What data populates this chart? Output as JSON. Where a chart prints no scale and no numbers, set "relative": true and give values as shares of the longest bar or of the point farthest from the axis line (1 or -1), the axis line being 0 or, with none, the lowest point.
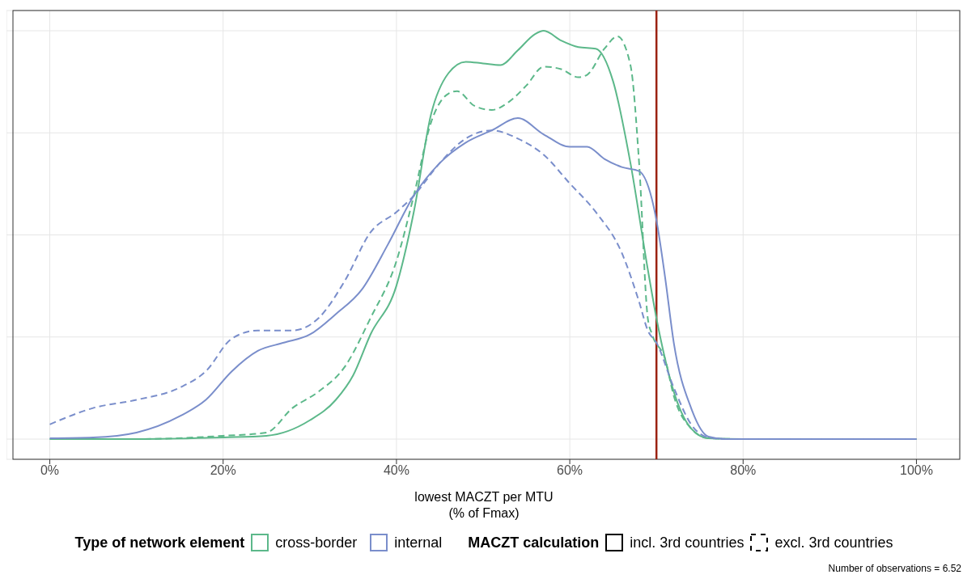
{
  "chart_data": {
    "type": "line",
    "relative": true,
    "xlabel": "lowest MACZT per MTU\n(% of Fmax)",
    "legend_title": "Type of network element",
    "legend": "bottom",
    "grid": true,
    "xlim": [
      -5,
      105
    ],
    "xticks": [
      {
        "value": 0,
        "label": "0%"
      },
      {
        "value": 20,
        "label": "20%"
      },
      {
        "value": 40,
        "label": "40%"
      },
      {
        "value": 60,
        "label": "60%"
      },
      {
        "value": 80,
        "label": "80%"
      },
      {
        "value": 100,
        "label": "100%"
      }
    ],
    "series": [
      {
        "name": "cross-border",
        "color": "#5cb88a",
        "line_style": "solid",
        "x": [
          0,
          10,
          20,
          25,
          30,
          33,
          35,
          37,
          40,
          42,
          44,
          46,
          48,
          50,
          52,
          54,
          56,
          57,
          59,
          61,
          63,
          65,
          67,
          69,
          70,
          71,
          72,
          74,
          76,
          80,
          100
        ],
        "values": [
          0,
          0,
          0.004,
          0.008,
          0.046,
          0.096,
          0.156,
          0.256,
          0.376,
          0.556,
          0.796,
          0.896,
          0.924,
          0.92,
          0.916,
          0.952,
          0.992,
          1,
          0.976,
          0.96,
          0.956,
          0.876,
          0.676,
          0.416,
          0.296,
          0.196,
          0.116,
          0.026,
          0.002,
          0,
          0
        ]
      },
      {
        "color": "#5cb88a",
        "line_style": "dashed",
        "x": [
          0,
          10,
          20,
          25,
          28,
          31,
          34,
          37,
          40,
          42,
          44,
          46,
          47,
          49,
          51,
          53,
          55,
          57,
          59,
          61,
          62,
          64,
          65.5,
          67,
          68,
          69,
          69.5,
          71,
          72,
          74,
          76,
          80,
          100
        ],
        "values": [
          0,
          0,
          0.008,
          0.016,
          0.076,
          0.116,
          0.176,
          0.296,
          0.436,
          0.596,
          0.776,
          0.846,
          0.852,
          0.816,
          0.806,
          0.826,
          0.866,
          0.912,
          0.906,
          0.886,
          0.892,
          0.956,
          0.986,
          0.916,
          0.676,
          0.296,
          0.256,
          0.196,
          0.106,
          0.026,
          0.002,
          0,
          0
        ]
      },
      {
        "name": "internal",
        "color": "#7a8ecb",
        "line_style": "solid",
        "x": [
          0,
          5,
          10,
          15,
          18,
          21,
          24,
          27,
          30,
          33,
          36,
          39,
          42,
          45,
          48,
          51,
          54,
          57,
          60,
          62,
          64,
          66,
          68,
          70,
          71,
          72,
          74,
          76,
          78,
          100
        ],
        "values": [
          0.002,
          0.004,
          0.016,
          0.056,
          0.096,
          0.166,
          0.216,
          0.236,
          0.256,
          0.306,
          0.366,
          0.476,
          0.596,
          0.676,
          0.726,
          0.756,
          0.786,
          0.746,
          0.716,
          0.716,
          0.686,
          0.666,
          0.656,
          0.536,
          0.396,
          0.236,
          0.076,
          0.006,
          0,
          0
        ]
      },
      {
        "color": "#7a8ecb",
        "line_style": "dashed",
        "x": [
          0,
          5,
          10,
          15,
          18,
          21,
          24,
          28,
          31,
          34,
          37,
          40,
          42,
          45,
          48,
          51,
          54,
          57,
          60,
          63,
          66,
          68,
          69,
          70,
          72,
          74,
          76,
          78,
          100
        ],
        "values": [
          0.036,
          0.076,
          0.096,
          0.126,
          0.166,
          0.246,
          0.266,
          0.266,
          0.296,
          0.386,
          0.506,
          0.556,
          0.596,
          0.676,
          0.736,
          0.756,
          0.736,
          0.696,
          0.626,
          0.556,
          0.456,
          0.336,
          0.266,
          0.236,
          0.126,
          0.036,
          0.004,
          0,
          0
        ]
      }
    ],
    "ref_lines": [
      {
        "axis": "x",
        "value": 70,
        "color": "#9b2212"
      }
    ],
    "annotations": [
      "MACZT calculation",
      "incl. 3rd countries",
      "excl. 3rd countries",
      "Number of observations = 6.52"
    ]
  }
}
